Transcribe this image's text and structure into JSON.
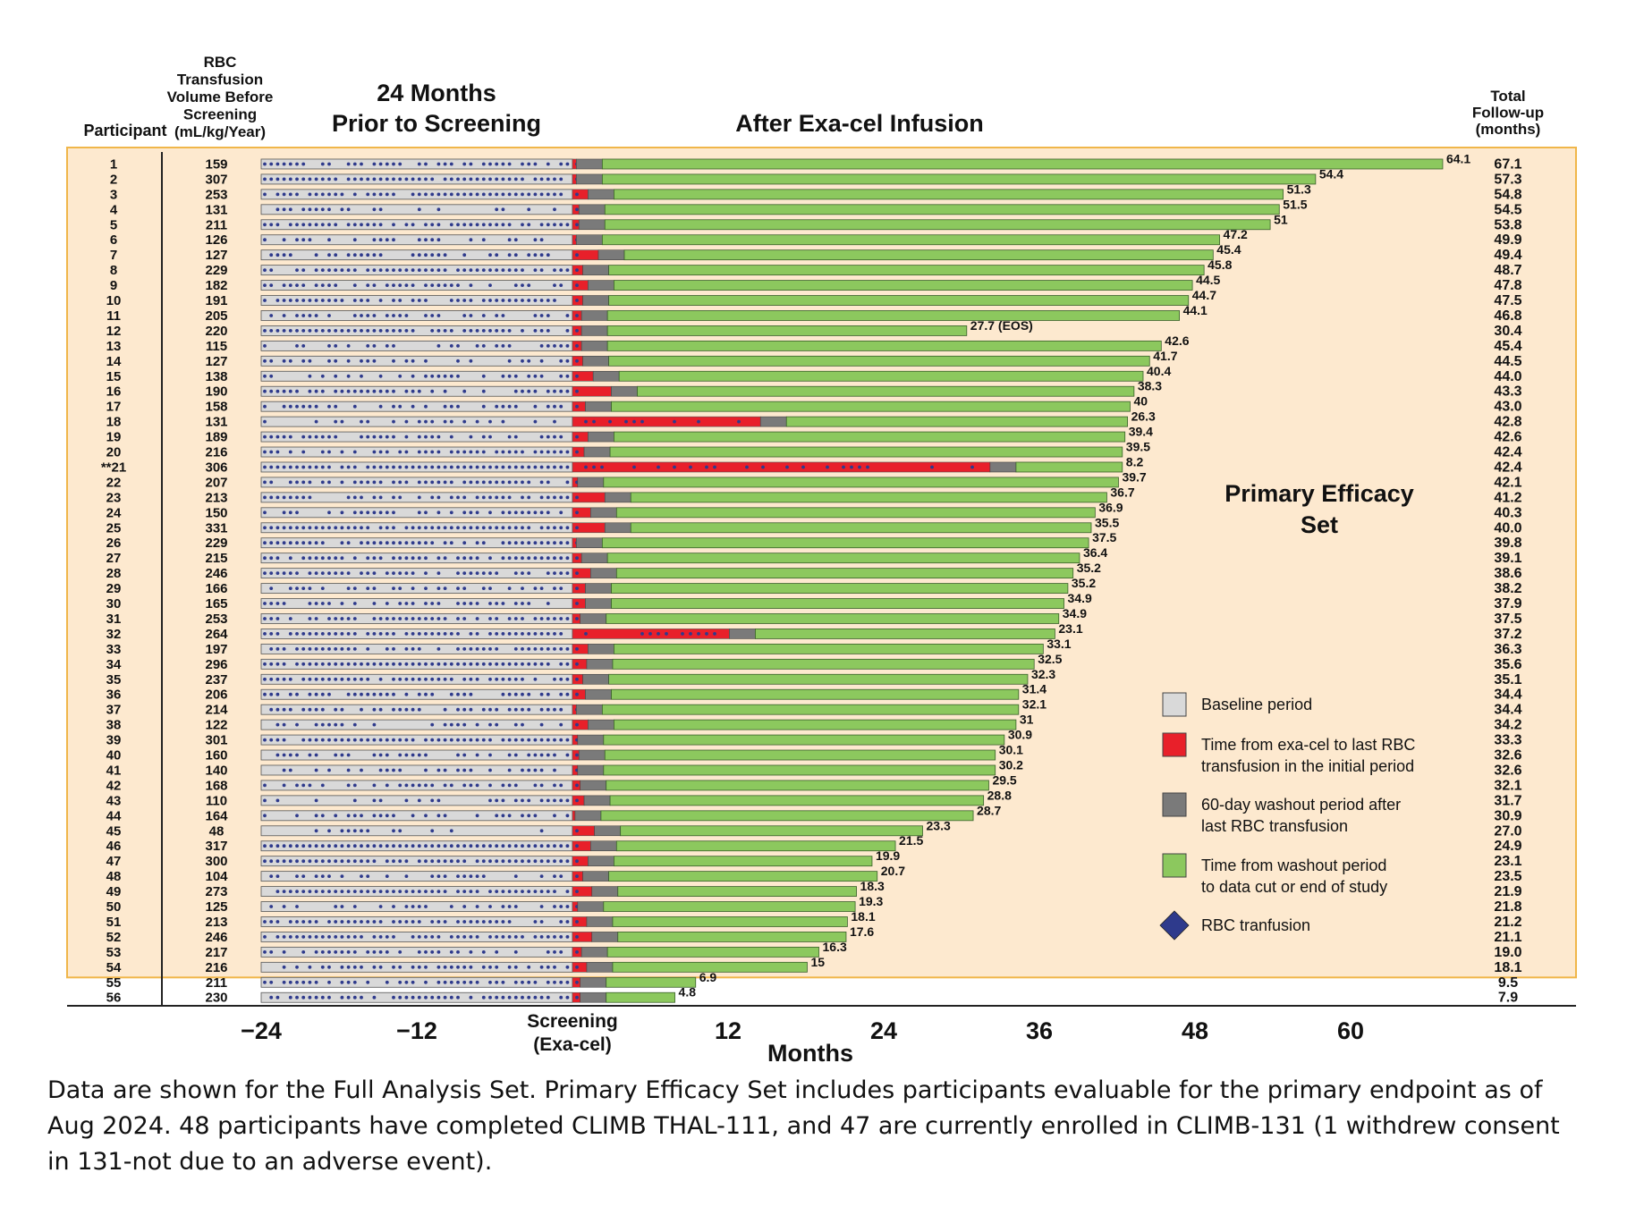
{
  "chart_data": {
    "type": "bar",
    "headers": {
      "participant": "Participant",
      "rbc_volume": [
        "RBC",
        "Transfusion",
        "Volume Before",
        "Screening",
        "(mL/kg/Year)"
      ],
      "prior": [
        "24 Months",
        "Prior to Screening"
      ],
      "after": "After Exa-cel Infusion",
      "followup": [
        "Total",
        "Follow-up",
        "(months)"
      ]
    },
    "efficacy_set_label": [
      "Primary Efficacy",
      "Set"
    ],
    "xlabel": "Months",
    "xlim": [
      -24,
      68
    ],
    "x_ticks": [
      {
        "value": -24,
        "label": "−24"
      },
      {
        "value": -12,
        "label": "−12"
      },
      {
        "value": 12,
        "label": "12"
      },
      {
        "value": 24,
        "label": "24"
      },
      {
        "value": 36,
        "label": "36"
      },
      {
        "value": 48,
        "label": "48"
      },
      {
        "value": 60,
        "label": "60"
      }
    ],
    "screening_label": [
      "Screening",
      "(Exa-cel)"
    ],
    "legend": [
      {
        "key": "baseline",
        "label": [
          "Baseline period"
        ],
        "color": "#d9d9d9",
        "shape": "square"
      },
      {
        "key": "red",
        "label": [
          "Time from exa-cel to last RBC",
          "transfusion in the initial period"
        ],
        "color": "#e8202a",
        "shape": "square"
      },
      {
        "key": "washout",
        "label": [
          "60-day washout period after",
          "last RBC transfusion"
        ],
        "color": "#7a7a7a",
        "shape": "square"
      },
      {
        "key": "green",
        "label": [
          "Time from washout period",
          "to data cut or end of study"
        ],
        "color": "#8cc85e",
        "shape": "square"
      },
      {
        "key": "rbc",
        "label": [
          "RBC tranfusion"
        ],
        "color": "#2e3a8c",
        "shape": "diamond"
      }
    ],
    "colors": {
      "baseline": "#d9d9d9",
      "red": "#e8202a",
      "washout": "#7a7a7a",
      "green": "#8cc85e",
      "dot": "#2e3a8c",
      "efficacy_bg": "#fde9cf",
      "efficacy_border": "#f0b64a"
    },
    "primary_efficacy_rows": 54,
    "participants": [
      {
        "id": "1",
        "rbc_volume": 159,
        "red_end": 0.3,
        "green_end": 67.1,
        "green_label": "64.1",
        "total": "67.1"
      },
      {
        "id": "2",
        "rbc_volume": 307,
        "red_end": 0.3,
        "green_end": 57.3,
        "green_label": "54.4",
        "total": "57.3"
      },
      {
        "id": "3",
        "rbc_volume": 253,
        "red_end": 1.2,
        "green_end": 54.8,
        "green_label": "51.3",
        "total": "54.8"
      },
      {
        "id": "4",
        "rbc_volume": 131,
        "red_end": 0.5,
        "green_end": 54.5,
        "green_label": "51.5",
        "total": "54.5"
      },
      {
        "id": "5",
        "rbc_volume": 211,
        "red_end": 0.5,
        "green_end": 53.8,
        "green_label": "51",
        "total": "53.8"
      },
      {
        "id": "6",
        "rbc_volume": 126,
        "red_end": 0.3,
        "green_end": 49.9,
        "green_label": "47.2",
        "total": "49.9"
      },
      {
        "id": "7",
        "rbc_volume": 127,
        "red_end": 2.0,
        "green_end": 49.4,
        "green_label": "45.4",
        "total": "49.4"
      },
      {
        "id": "8",
        "rbc_volume": 229,
        "red_end": 0.8,
        "green_end": 48.7,
        "green_label": "45.8",
        "total": "48.7"
      },
      {
        "id": "9",
        "rbc_volume": 182,
        "red_end": 1.2,
        "green_end": 47.8,
        "green_label": "44.5",
        "total": "47.8"
      },
      {
        "id": "10",
        "rbc_volume": 191,
        "red_end": 0.8,
        "green_end": 47.5,
        "green_label": "44.7",
        "total": "47.5"
      },
      {
        "id": "11",
        "rbc_volume": 205,
        "red_end": 0.7,
        "green_end": 46.8,
        "green_label": "44.1",
        "total": "46.8"
      },
      {
        "id": "12",
        "rbc_volume": 220,
        "red_end": 0.7,
        "green_end": 30.4,
        "green_label": "27.7 (EOS)",
        "total": "30.4"
      },
      {
        "id": "13",
        "rbc_volume": 115,
        "red_end": 0.7,
        "green_end": 45.4,
        "green_label": "42.6",
        "total": "45.4"
      },
      {
        "id": "14",
        "rbc_volume": 127,
        "red_end": 0.8,
        "green_end": 44.5,
        "green_label": "41.7",
        "total": "44.5"
      },
      {
        "id": "15",
        "rbc_volume": 138,
        "red_end": 1.6,
        "green_end": 44.0,
        "green_label": "40.4",
        "total": "44.0"
      },
      {
        "id": "16",
        "rbc_volume": 190,
        "red_end": 3.0,
        "green_end": 43.3,
        "green_label": "38.3",
        "total": "43.3"
      },
      {
        "id": "17",
        "rbc_volume": 158,
        "red_end": 1.0,
        "green_end": 43.0,
        "green_label": "40",
        "total": "43.0"
      },
      {
        "id": "18",
        "rbc_volume": 131,
        "red_end": 14.5,
        "green_end": 42.8,
        "green_label": "26.3",
        "total": "42.8"
      },
      {
        "id": "19",
        "rbc_volume": 189,
        "red_end": 1.2,
        "green_end": 42.6,
        "green_label": "39.4",
        "total": "42.6"
      },
      {
        "id": "20",
        "rbc_volume": 216,
        "red_end": 0.9,
        "green_end": 42.4,
        "green_label": "39.5",
        "total": "42.4"
      },
      {
        "id": "**21",
        "rbc_volume": 306,
        "red_end": 32.2,
        "green_end": 42.4,
        "green_label": "8.2",
        "total": "42.4"
      },
      {
        "id": "22",
        "rbc_volume": 207,
        "red_end": 0.4,
        "green_end": 42.1,
        "green_label": "39.7",
        "total": "42.1"
      },
      {
        "id": "23",
        "rbc_volume": 213,
        "red_end": 2.5,
        "green_end": 41.2,
        "green_label": "36.7",
        "total": "41.2"
      },
      {
        "id": "24",
        "rbc_volume": 150,
        "red_end": 1.4,
        "green_end": 40.3,
        "green_label": "36.9",
        "total": "40.3"
      },
      {
        "id": "25",
        "rbc_volume": 331,
        "red_end": 2.5,
        "green_end": 40.0,
        "green_label": "35.5",
        "total": "40.0"
      },
      {
        "id": "26",
        "rbc_volume": 229,
        "red_end": 0.3,
        "green_end": 39.8,
        "green_label": "37.5",
        "total": "39.8"
      },
      {
        "id": "27",
        "rbc_volume": 215,
        "red_end": 0.7,
        "green_end": 39.1,
        "green_label": "36.4",
        "total": "39.1"
      },
      {
        "id": "28",
        "rbc_volume": 246,
        "red_end": 1.4,
        "green_end": 38.6,
        "green_label": "35.2",
        "total": "38.6"
      },
      {
        "id": "29",
        "rbc_volume": 166,
        "red_end": 1.0,
        "green_end": 38.2,
        "green_label": "35.2",
        "total": "38.2"
      },
      {
        "id": "30",
        "rbc_volume": 165,
        "red_end": 1.0,
        "green_end": 37.9,
        "green_label": "34.9",
        "total": "37.9"
      },
      {
        "id": "31",
        "rbc_volume": 253,
        "red_end": 0.6,
        "green_end": 37.5,
        "green_label": "34.9",
        "total": "37.5"
      },
      {
        "id": "32",
        "rbc_volume": 264,
        "red_end": 12.1,
        "green_end": 37.2,
        "green_label": "23.1",
        "total": "37.2"
      },
      {
        "id": "33",
        "rbc_volume": 197,
        "red_end": 1.2,
        "green_end": 36.3,
        "green_label": "33.1",
        "total": "36.3"
      },
      {
        "id": "34",
        "rbc_volume": 296,
        "red_end": 1.1,
        "green_end": 35.6,
        "green_label": "32.5",
        "total": "35.6"
      },
      {
        "id": "35",
        "rbc_volume": 237,
        "red_end": 0.8,
        "green_end": 35.1,
        "green_label": "32.3",
        "total": "35.1"
      },
      {
        "id": "36",
        "rbc_volume": 206,
        "red_end": 1.0,
        "green_end": 34.4,
        "green_label": "31.4",
        "total": "34.4"
      },
      {
        "id": "37",
        "rbc_volume": 214,
        "red_end": 0.3,
        "green_end": 34.4,
        "green_label": "32.1",
        "total": "34.4"
      },
      {
        "id": "38",
        "rbc_volume": 122,
        "red_end": 1.2,
        "green_end": 34.2,
        "green_label": "31",
        "total": "34.2"
      },
      {
        "id": "39",
        "rbc_volume": 301,
        "red_end": 0.4,
        "green_end": 33.3,
        "green_label": "30.9",
        "total": "33.3"
      },
      {
        "id": "40",
        "rbc_volume": 160,
        "red_end": 0.5,
        "green_end": 32.6,
        "green_label": "30.1",
        "total": "32.6"
      },
      {
        "id": "41",
        "rbc_volume": 140,
        "red_end": 0.4,
        "green_end": 32.6,
        "green_label": "30.2",
        "total": "32.6"
      },
      {
        "id": "42",
        "rbc_volume": 168,
        "red_end": 0.6,
        "green_end": 32.1,
        "green_label": "29.5",
        "total": "32.1"
      },
      {
        "id": "43",
        "rbc_volume": 110,
        "red_end": 0.9,
        "green_end": 31.7,
        "green_label": "28.8",
        "total": "31.7"
      },
      {
        "id": "44",
        "rbc_volume": 164,
        "red_end": 0.2,
        "green_end": 30.9,
        "green_label": "28.7",
        "total": "30.9"
      },
      {
        "id": "45",
        "rbc_volume": 48,
        "red_end": 1.7,
        "green_end": 27.0,
        "green_label": "23.3",
        "total": "27.0"
      },
      {
        "id": "46",
        "rbc_volume": 317,
        "red_end": 1.4,
        "green_end": 24.9,
        "green_label": "21.5",
        "total": "24.9"
      },
      {
        "id": "47",
        "rbc_volume": 300,
        "red_end": 1.2,
        "green_end": 23.1,
        "green_label": "19.9",
        "total": "23.1"
      },
      {
        "id": "48",
        "rbc_volume": 104,
        "red_end": 0.8,
        "green_end": 23.5,
        "green_label": "20.7",
        "total": "23.5"
      },
      {
        "id": "49",
        "rbc_volume": 273,
        "red_end": 1.5,
        "green_end": 21.9,
        "green_label": "18.3",
        "total": "21.9"
      },
      {
        "id": "50",
        "rbc_volume": 125,
        "red_end": 0.4,
        "green_end": 21.8,
        "green_label": "19.3",
        "total": "21.8"
      },
      {
        "id": "51",
        "rbc_volume": 213,
        "red_end": 1.1,
        "green_end": 21.2,
        "green_label": "18.1",
        "total": "21.2"
      },
      {
        "id": "52",
        "rbc_volume": 246,
        "red_end": 1.5,
        "green_end": 21.1,
        "green_label": "17.6",
        "total": "21.1"
      },
      {
        "id": "53",
        "rbc_volume": 217,
        "red_end": 0.7,
        "green_end": 19.0,
        "green_label": "16.3",
        "total": "19.0"
      },
      {
        "id": "54",
        "rbc_volume": 216,
        "red_end": 1.1,
        "green_end": 18.1,
        "green_label": "15",
        "total": "18.1"
      },
      {
        "id": "55",
        "rbc_volume": 211,
        "red_end": 0.6,
        "green_end": 9.5,
        "green_label": "6.9",
        "total": "9.5"
      },
      {
        "id": "56",
        "rbc_volume": 230,
        "red_end": 0.6,
        "green_end": 7.9,
        "green_label": "4.8",
        "total": "7.9"
      }
    ]
  },
  "footnote": "Data are shown for the Full Analysis Set. Primary Efficacy Set includes participants evaluable for the primary endpoint as of Aug 2024. 48 participants have completed CLIMB THAL-111, and 47 are currently enrolled in CLIMB-131 (1 withdrew consent in 131-not due to an adverse event)."
}
